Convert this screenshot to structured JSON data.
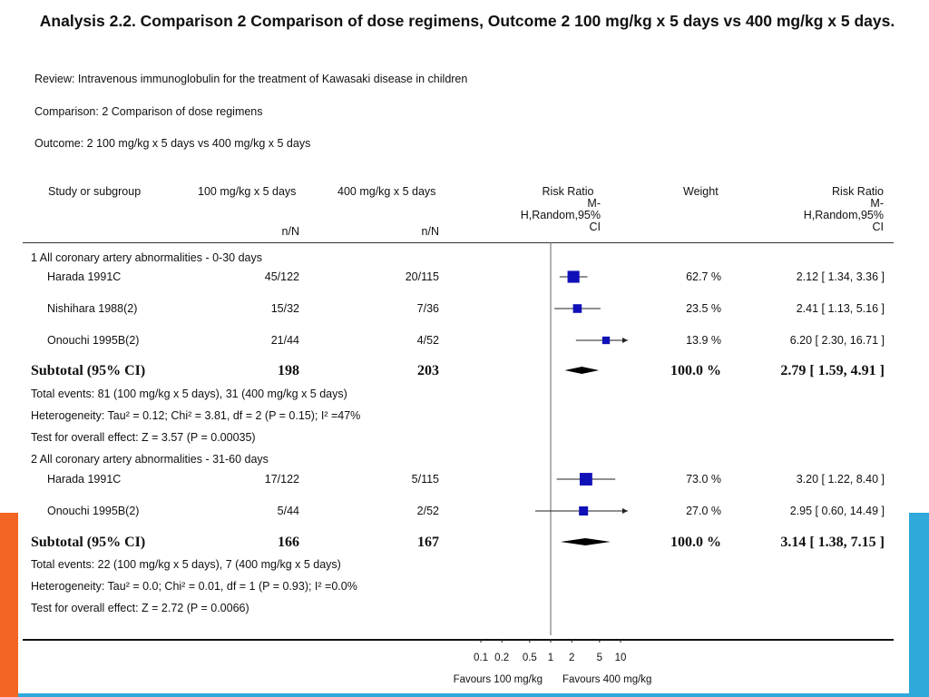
{
  "title": "Analysis 2.2.   Comparison 2 Comparison of dose regimens, Outcome 2 100 mg/kg x 5 days vs 400 mg/kg x 5 days.",
  "review": "Review:   Intravenous immunoglobulin for the treatment of Kawasaki disease in children",
  "comparison": "Comparison:   2 Comparison of dose regimens",
  "outcome": "Outcome:   2 100 mg/kg x 5 days vs 400 mg/kg x 5 days",
  "headers": {
    "study": "Study or subgroup",
    "group1": "100 mg/kg x 5 days",
    "group2": "400 mg/kg x 5 days",
    "nN1": "n/N",
    "nN2": "n/N",
    "rr_plot": "Risk Ratio",
    "rr_plot_sub1": "M-",
    "rr_plot_sub2": "H,Random,95%",
    "rr_plot_sub3": "CI",
    "weight": "Weight",
    "rr_text": "Risk Ratio",
    "rr_text_sub1": "M-",
    "rr_text_sub2": "H,Random,95%",
    "rr_text_sub3": "CI"
  },
  "groups": [
    {
      "label": "1 All coronary artery abnormalities - 0-30 days",
      "studies": [
        {
          "name": "Harada 1991C",
          "n1": "45/122",
          "n2": "20/115",
          "weight": "62.7 %",
          "ci": "2.12 [ 1.34, 3.36 ]"
        },
        {
          "name": "Nishihara 1988(2)",
          "n1": "15/32",
          "n2": "7/36",
          "weight": "23.5 %",
          "ci": "2.41 [ 1.13, 5.16 ]"
        },
        {
          "name": "Onouchi 1995B(2)",
          "n1": "21/44",
          "n2": "4/52",
          "weight": "13.9 %",
          "ci": "6.20 [ 2.30, 16.71 ]"
        }
      ],
      "subtotal": {
        "label": "Subtotal (95% CI)",
        "n1": "198",
        "n2": "203",
        "weight": "100.0 %",
        "ci": "2.79 [ 1.59, 4.91 ]"
      },
      "notes": [
        "Total events: 81 (100 mg/kg x 5 days), 31 (400 mg/kg x 5 days)",
        "Heterogeneity: Tau² = 0.12; Chi² = 3.81, df = 2 (P = 0.15); I² =47%",
        "Test for overall effect: Z = 3.57 (P = 0.00035)"
      ]
    },
    {
      "label": "2 All coronary artery abnormalities - 31-60 days",
      "studies": [
        {
          "name": "Harada 1991C",
          "n1": "17/122",
          "n2": "5/115",
          "weight": "73.0 %",
          "ci": "3.20 [ 1.22, 8.40 ]"
        },
        {
          "name": "Onouchi 1995B(2)",
          "n1": "5/44",
          "n2": "2/52",
          "weight": "27.0 %",
          "ci": "2.95 [ 0.60, 14.49 ]"
        }
      ],
      "subtotal": {
        "label": "Subtotal (95% CI)",
        "n1": "166",
        "n2": "167",
        "weight": "100.0 %",
        "ci": "3.14 [ 1.38, 7.15 ]"
      },
      "notes": [
        "Total events: 22 (100 mg/kg x 5 days), 7 (400 mg/kg x 5 days)",
        "Heterogeneity: Tau² = 0.0; Chi² = 0.01, df = 1 (P = 0.93); I² =0.0%",
        "Test for overall effect: Z = 2.72 (P = 0.0066)"
      ]
    }
  ],
  "axis": {
    "ticks": [
      "0.1",
      "0.2",
      "0.5",
      "1",
      "2",
      "5",
      "10"
    ],
    "favours_left": "Favours 100 mg/kg",
    "favours_right": "Favours 400 mg/kg"
  },
  "colors": {
    "marker": "#1010b8",
    "diamond": "#000000",
    "accent_left": "#f26522",
    "accent_right": "#2fa8dc"
  },
  "chart_data": {
    "type": "forest",
    "scale": "log",
    "xlim": [
      0.1,
      10
    ],
    "reference_line": 1,
    "studies": [
      {
        "group": 1,
        "name": "Harada 1991C",
        "rr": 2.12,
        "lo": 1.34,
        "hi": 3.36,
        "weight": 62.7
      },
      {
        "group": 1,
        "name": "Nishihara 1988(2)",
        "rr": 2.41,
        "lo": 1.13,
        "hi": 5.16,
        "weight": 23.5
      },
      {
        "group": 1,
        "name": "Onouchi 1995B(2)",
        "rr": 6.2,
        "lo": 2.3,
        "hi": 16.71,
        "weight": 13.9
      },
      {
        "group": 2,
        "name": "Harada 1991C",
        "rr": 3.2,
        "lo": 1.22,
        "hi": 8.4,
        "weight": 73.0
      },
      {
        "group": 2,
        "name": "Onouchi 1995B(2)",
        "rr": 2.95,
        "lo": 0.6,
        "hi": 14.49,
        "weight": 27.0
      }
    ],
    "subtotals": [
      {
        "group": 1,
        "rr": 2.79,
        "lo": 1.59,
        "hi": 4.91
      },
      {
        "group": 2,
        "rr": 3.14,
        "lo": 1.38,
        "hi": 7.15
      }
    ]
  }
}
